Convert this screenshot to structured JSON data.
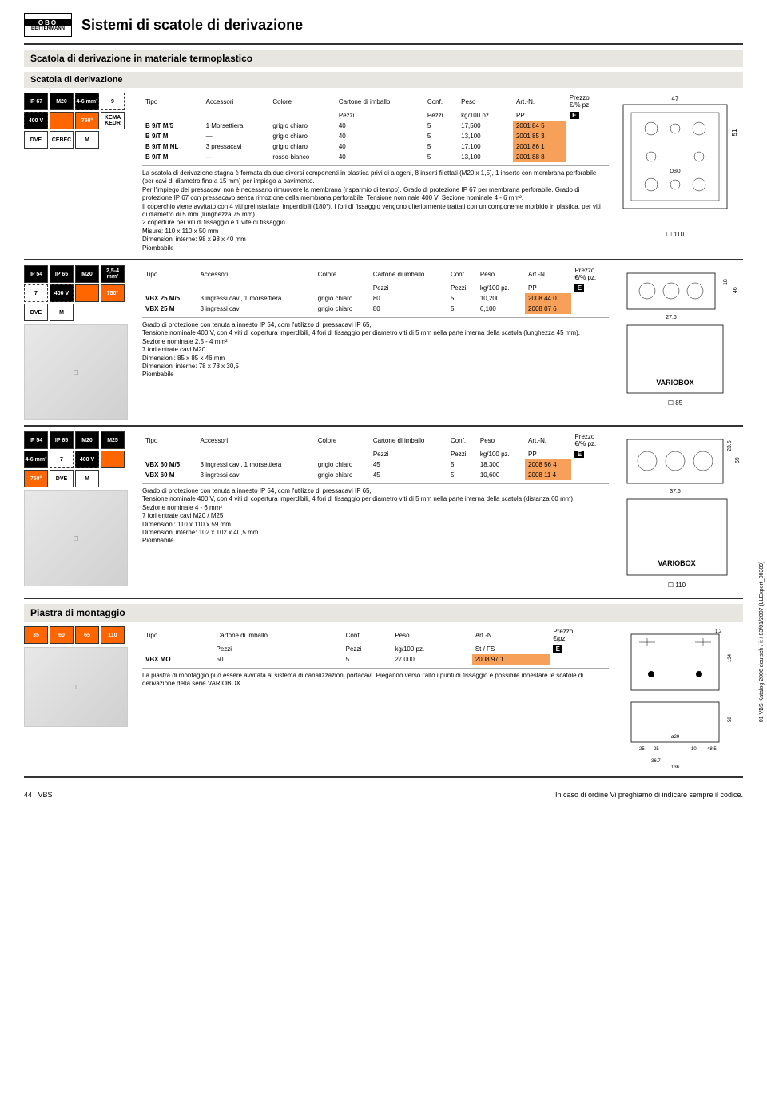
{
  "header": {
    "logo_top": "OBO",
    "logo_bot": "BETTERMANN",
    "title": "Sistemi di scatole di derivazione"
  },
  "subtitle1": "Scatola di derivazione in materiale termoplastico",
  "subtitle2": "Scatola di derivazione",
  "table_headers": {
    "tipo": "Tipo",
    "accessori": "Accessori",
    "colore": "Colore",
    "cartone": "Cartone di imballo",
    "conf": "Conf.",
    "peso": "Peso",
    "artn": "Art.-N.",
    "prezzo": "Prezzo",
    "prezzo_unit": "€/% pz.",
    "prezzo_unit2": "€/pz.",
    "pezzi": "Pezzi",
    "kg": "kg/100 pz.",
    "pp": "PP",
    "st_fs": "St / FS",
    "e": "E"
  },
  "block1": {
    "badges": [
      {
        "t": "IP 67",
        "c": "badge-blk"
      },
      {
        "t": "M20",
        "c": "badge-blk"
      },
      {
        "t": "4-6 mm²",
        "c": "badge-blk badge-dash"
      },
      {
        "t": "9",
        "c": "badge-wht badge-dash"
      },
      {
        "t": "400 V",
        "c": "badge-blk badge-dash"
      },
      {
        "t": "",
        "c": "badge-org"
      },
      {
        "t": "750°",
        "c": "badge-org"
      },
      {
        "t": "KEMA KEUR",
        "c": "badge-wht"
      },
      {
        "t": "DVE",
        "c": "badge-wht"
      },
      {
        "t": "CEBEC",
        "c": "badge-wht"
      },
      {
        "t": "M",
        "c": "badge-wht"
      }
    ],
    "rows": [
      {
        "tipo": "B 9/T M/5",
        "acc": "1 Morsettiera",
        "col": "grigio chiaro",
        "cart": "40",
        "conf": "5",
        "peso": "17,500",
        "art": "2001 84 5"
      },
      {
        "tipo": "B 9/T M",
        "acc": "—",
        "col": "grigio chiaro",
        "cart": "40",
        "conf": "5",
        "peso": "13,100",
        "art": "2001 85 3"
      },
      {
        "tipo": "B 9/T M NL",
        "acc": "3 pressacavi",
        "col": "grigio chiaro",
        "cart": "40",
        "conf": "5",
        "peso": "17,100",
        "art": "2001 86 1"
      },
      {
        "tipo": "B 9/T M",
        "acc": "—",
        "col": "rosso-bianco",
        "cart": "40",
        "conf": "5",
        "peso": "13,100",
        "art": "2001 88 8"
      }
    ],
    "desc": "La scatola di derivazione stagna è formata da due diversi componenti in plastica privi di alogeni, 8 inserti filettati (M20 x 1,5), 1 inserto con membrana perforabile (per cavi di diametro fino a 15 mm) per impiego a pavimento.\nPer l'impiego dei pressacavi non è necessario rimuovere la membrana (risparmio di tempo). Grado di protezione IP 67 per membrana perforabile. Grado di protezione IP 67 con pressacavo senza rimozione della membrana perforabile. Tensione nominale 400 V; Sezione nominale 4 - 6 mm².\nIl coperchio viene avvitato con 4 viti preinstallate, imperdibili (180°). I fori di fissaggio vengono ulteriormente trattati con un componente morbido in plastica, per viti di diametro di 5 mm (lunghezza 75 mm).\n2 coperture per viti di fissaggio e 1 vite di fissaggio.\nMisure: 110 x 110 x 50 mm\nDimensioni interne: 98 x 98 x 40 mm\nPiombabile",
    "dims": {
      "w": "47",
      "h": "51",
      "box": "☐ 110"
    }
  },
  "block2": {
    "badges": [
      {
        "t": "IP 54",
        "c": "badge-blk"
      },
      {
        "t": "IP 65",
        "c": "badge-blk"
      },
      {
        "t": "M20",
        "c": "badge-blk"
      },
      {
        "t": "2,5-4 mm²",
        "c": "badge-blk"
      },
      {
        "t": "7",
        "c": "badge-wht badge-dash"
      },
      {
        "t": "400 V",
        "c": "badge-blk badge-dash"
      },
      {
        "t": "",
        "c": "badge-org"
      },
      {
        "t": "750°",
        "c": "badge-org"
      },
      {
        "t": "DVE",
        "c": "badge-wht"
      },
      {
        "t": "M",
        "c": "badge-wht"
      }
    ],
    "rows": [
      {
        "tipo": "VBX 25 M/5",
        "acc": "3 ingressi cavi, 1 morsettiera",
        "col": "grigio chiaro",
        "cart": "80",
        "conf": "5",
        "peso": "10,200",
        "art": "2008 44 0"
      },
      {
        "tipo": "VBX 25 M",
        "acc": "3 ingressi cavi",
        "col": "grigio chiaro",
        "cart": "80",
        "conf": "5",
        "peso": "6,100",
        "art": "2008 07 6"
      }
    ],
    "desc": "Grado di protezione con tenuta a innesto IP 54, com l'utilizzo di pressacavi IP 65,\nTensione nominale 400 V, con 4 viti di copertura imperdibili, 4 fori di fissaggio per diametro viti di 5 mm nella parte interna della scatola (lunghezza 45 mm).\nSezione nominale 2,5 - 4 mm²\n7 fori entrate cavi M20\nDimensioni: 85 x 85 x 46 mm\nDimensioni interne: 78 x 78 x 30,5\nPiombabile",
    "dims": {
      "w": "27.6",
      "h1": "18",
      "h2": "46",
      "box": "☐ 85",
      "label": "VARIOBOX"
    }
  },
  "block3": {
    "badges": [
      {
        "t": "IP 54",
        "c": "badge-blk"
      },
      {
        "t": "IP 65",
        "c": "badge-blk"
      },
      {
        "t": "M20",
        "c": "badge-blk"
      },
      {
        "t": "M25",
        "c": "badge-blk"
      },
      {
        "t": "4-6 mm²",
        "c": "badge-blk"
      },
      {
        "t": "7",
        "c": "badge-wht badge-dash"
      },
      {
        "t": "400 V",
        "c": "badge-blk badge-dash"
      },
      {
        "t": "",
        "c": "badge-org"
      },
      {
        "t": "750°",
        "c": "badge-org"
      },
      {
        "t": "DVE",
        "c": "badge-wht"
      },
      {
        "t": "M",
        "c": "badge-wht"
      }
    ],
    "rows": [
      {
        "tipo": "VBX 60 M/5",
        "acc": "3 ingressi cavi, 1 morsettiera",
        "col": "grigio chiaro",
        "cart": "45",
        "conf": "5",
        "peso": "18,300",
        "art": "2008 56 4"
      },
      {
        "tipo": "VBX 60 M",
        "acc": "3 ingressi cavi",
        "col": "grigio chiaro",
        "cart": "45",
        "conf": "5",
        "peso": "10,600",
        "art": "2008 11 4"
      }
    ],
    "desc": "Grado di protezione con tenuta a innesto IP 54, com l'utilizzo di pressacavi IP 65,\nTensione nominale 400 V, con 4 viti di copertura imperdibili, 4 fori di fissaggio per diametro viti di 5 mm nella parte interna della scatola (distanza 60 mm).\nSezione nominale 4 - 6 mm²\n7 fori entrate cavi M20 / M25\nDimensioni: 110 x 110 x 59 mm\nDimensioni interne: 102 x 102 x 40,5 mm\nPiombabile",
    "dims": {
      "w": "37.6",
      "h1": "23.5",
      "h2": "59",
      "box": "☐ 110",
      "label": "VARIOBOX"
    }
  },
  "subtitle3": "Piastra di montaggio",
  "block4": {
    "badges": [
      {
        "t": "35",
        "c": "badge-org"
      },
      {
        "t": "60",
        "c": "badge-org"
      },
      {
        "t": "65",
        "c": "badge-org"
      },
      {
        "t": "110",
        "c": "badge-org"
      }
    ],
    "rows": [
      {
        "tipo": "VBX MO",
        "cart": "50",
        "conf": "5",
        "peso": "27,000",
        "art": "2008 97 1"
      }
    ],
    "desc": "La piastra di montaggio può essere avvitata al sistema di canalizzazioni portacavi. Piegando verso l'alto i punti di fissaggio è possibile innestare le scatole di derivazione della serie VARIOBOX.",
    "dims": {
      "a": "1.2",
      "b": "134",
      "c": "58",
      "d": "25",
      "e": "10",
      "f": "48.5",
      "g": "ø29",
      "h": "36.7",
      "i": "136"
    }
  },
  "footer": {
    "left_num": "44",
    "left_txt": "VBS",
    "right": "In caso di ordine Vi preghiamo di indicare sempre il codice.",
    "side": "01 VBS Katalog 2006 deutsch / it / 03/01/2007 (LLExport_00389)"
  }
}
